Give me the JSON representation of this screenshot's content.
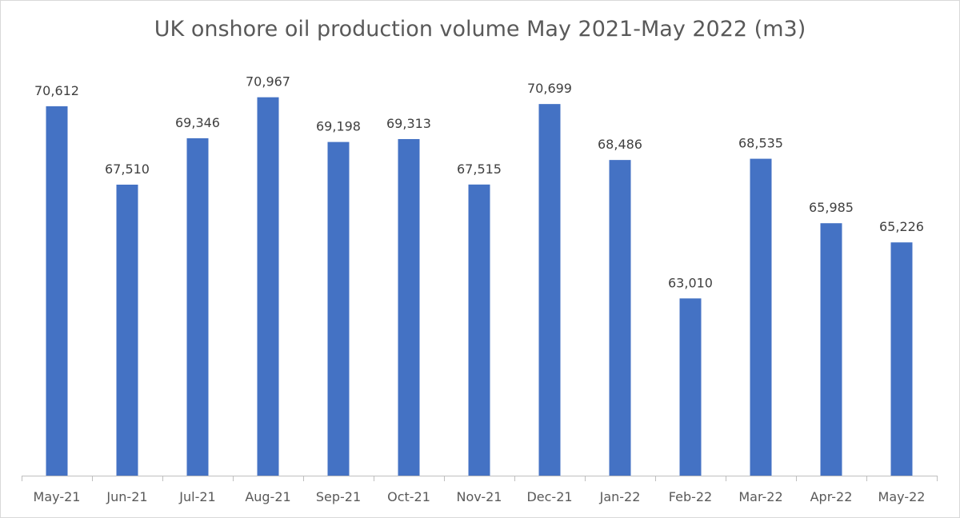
{
  "chart_data": {
    "type": "bar",
    "title": "UK onshore oil production volume May 2021-May 2022 (m3)",
    "categories": [
      "May-21",
      "Jun-21",
      "Jul-21",
      "Aug-21",
      "Sep-21",
      "Oct-21",
      "Nov-21",
      "Dec-21",
      "Jan-22",
      "Feb-22",
      "Mar-22",
      "Apr-22",
      "May-22"
    ],
    "values": [
      70612,
      67510,
      69346,
      70967,
      69198,
      69313,
      67515,
      70699,
      68486,
      63010,
      68535,
      65985,
      65226
    ],
    "data_labels": [
      "70,612",
      "67,510",
      "69,346",
      "70,967",
      "69,198",
      "69,313",
      "67,515",
      "70,699",
      "68,486",
      "63,010",
      "68,535",
      "65,985",
      "65,226"
    ],
    "xlabel": "",
    "ylabel": "",
    "ylim": [
      56000,
      72000
    ],
    "grid": false,
    "legend": "none",
    "bar_color": "#4472c4"
  }
}
